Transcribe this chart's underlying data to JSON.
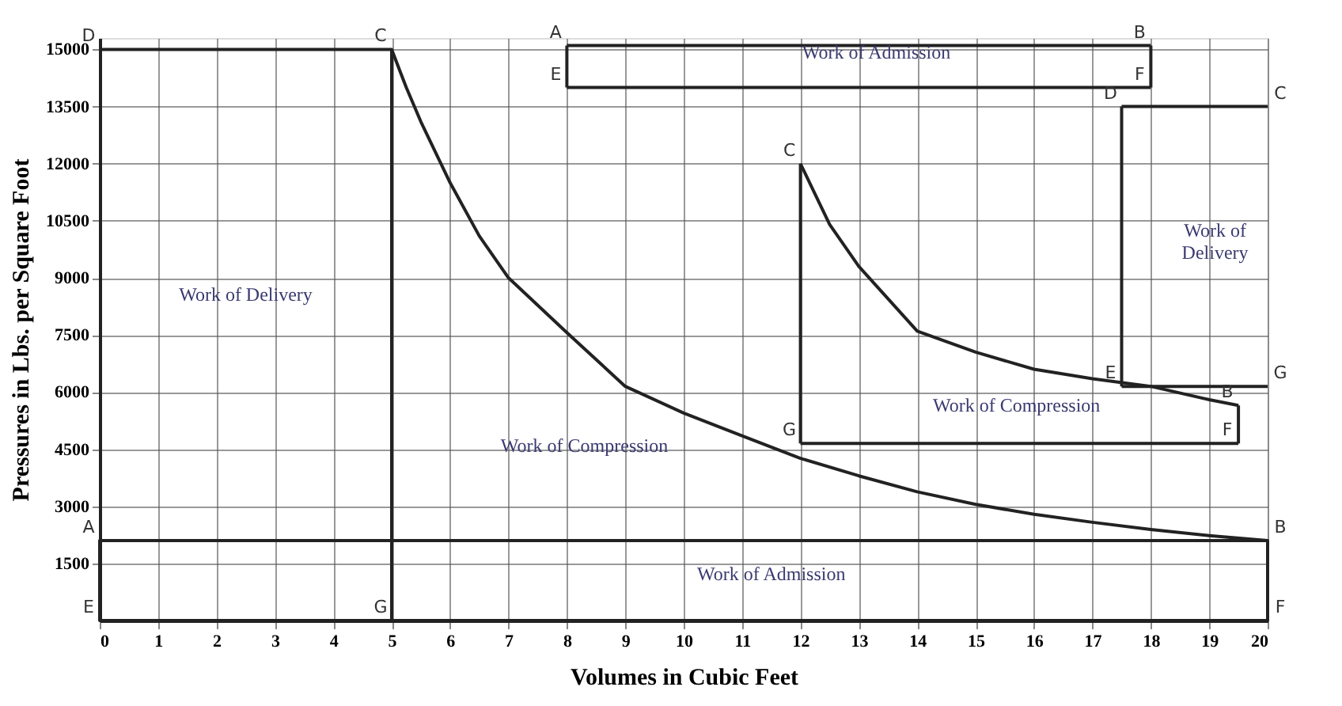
{
  "chart_data": {
    "type": "line",
    "xlabel": "Volumes in Cubic Feet",
    "ylabel": "Pressures in Lbs. per Square Foot",
    "xlim": [
      0,
      20
    ],
    "ylim": [
      0,
      15300
    ],
    "xticks": [
      0,
      1,
      2,
      3,
      4,
      5,
      6,
      7,
      8,
      9,
      10,
      11,
      12,
      13,
      14,
      15,
      16,
      17,
      18,
      19,
      20
    ],
    "yticks": [
      1500,
      3000,
      4500,
      6000,
      7500,
      9000,
      10500,
      12000,
      13500,
      15000
    ],
    "grid": true,
    "marker": "none",
    "line_style": "solid",
    "series": [
      {
        "color": "#222222",
        "x": [
          0,
          5,
          5.25,
          5.5,
          6,
          6.5,
          7,
          8,
          9,
          10,
          11,
          12,
          13,
          14,
          15,
          16,
          17,
          18,
          19,
          20,
          20,
          0,
          0,
          20
        ],
        "values": [
          15000,
          15000,
          14000,
          13100,
          11500,
          10100,
          9000,
          7560,
          6150,
          5450,
          4850,
          4260,
          3800,
          3380,
          3050,
          2790,
          2580,
          2390,
          2230,
          2100,
          0,
          0,
          2100,
          2100
        ]
      },
      {
        "color": "#222222",
        "x": [
          5,
          5
        ],
        "values": [
          15000,
          0
        ]
      },
      {
        "color": "#222222",
        "x": [
          8,
          18
        ],
        "values": [
          15100,
          15100
        ]
      },
      {
        "color": "#222222",
        "x": [
          8,
          18
        ],
        "values": [
          14000,
          14000
        ]
      },
      {
        "color": "#222222",
        "x": [
          8,
          8
        ],
        "values": [
          15100,
          14000
        ]
      },
      {
        "color": "#222222",
        "x": [
          18,
          18
        ],
        "values": [
          15100,
          14000
        ]
      },
      {
        "color": "#222222",
        "x": [
          12,
          12.5,
          13,
          14,
          15,
          16,
          17,
          18,
          19,
          19.5
        ],
        "values": [
          12000,
          10400,
          9300,
          7600,
          7050,
          6600,
          6350,
          6150,
          5800,
          5650
        ]
      },
      {
        "color": "#222222",
        "x": [
          12,
          19.5
        ],
        "values": [
          4650,
          4650
        ]
      },
      {
        "color": "#222222",
        "x": [
          12,
          12
        ],
        "values": [
          12000,
          4650
        ]
      },
      {
        "color": "#222222",
        "x": [
          19.5,
          19.5
        ],
        "values": [
          5650,
          4650
        ]
      },
      {
        "color": "#222222",
        "x": [
          17.5,
          20
        ],
        "values": [
          13500,
          13500
        ]
      },
      {
        "color": "#222222",
        "x": [
          17.5,
          20
        ],
        "values": [
          6150,
          6150
        ]
      },
      {
        "color": "#222222",
        "x": [
          17.5,
          17.5
        ],
        "values": [
          13500,
          6150
        ]
      }
    ],
    "annotations": [
      {
        "text": "D",
        "x": 0,
        "y": 15000
      },
      {
        "text": "C",
        "x": 5,
        "y": 15000
      },
      {
        "text": "A",
        "x": 0,
        "y": 2100
      },
      {
        "text": "B",
        "x": 20,
        "y": 2100
      },
      {
        "text": "E",
        "x": 0,
        "y": 0
      },
      {
        "text": "G",
        "x": 5,
        "y": 0
      },
      {
        "text": "F",
        "x": 20,
        "y": 0
      },
      {
        "text": "A",
        "x": 8,
        "y": 15100
      },
      {
        "text": "B",
        "x": 18,
        "y": 15100
      },
      {
        "text": "E",
        "x": 8,
        "y": 14000
      },
      {
        "text": "F",
        "x": 18,
        "y": 14000
      },
      {
        "text": "C",
        "x": 12,
        "y": 12000
      },
      {
        "text": "G",
        "x": 12,
        "y": 4650
      },
      {
        "text": "B",
        "x": 19.5,
        "y": 5650
      },
      {
        "text": "F",
        "x": 19.5,
        "y": 4650
      },
      {
        "text": "D",
        "x": 17.5,
        "y": 13500
      },
      {
        "text": "C",
        "x": 20,
        "y": 13500
      },
      {
        "text": "E",
        "x": 17.5,
        "y": 6150
      },
      {
        "text": "G",
        "x": 20,
        "y": 6150
      },
      "Work of Delivery",
      "Work of Compression",
      "Work of Admission",
      "Work of Admission",
      "Work of Compression",
      "Work of\nDelivery"
    ]
  }
}
